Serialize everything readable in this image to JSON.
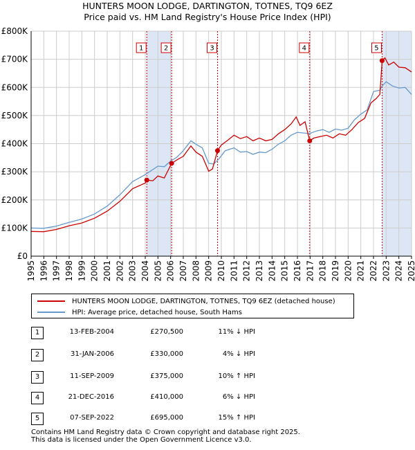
{
  "title": {
    "line1": "HUNTERS MOON LODGE, DARTINGTON, TOTNES, TQ9 6EZ",
    "line2": "Price paid vs. HM Land Registry's House Price Index (HPI)"
  },
  "colors": {
    "property": "#cc0000",
    "hpi": "#6699cc",
    "shade": "#dde6f5",
    "grid": "#cccccc"
  },
  "chart_data": {
    "type": "line",
    "title": "Price paid vs. HM Land Registry's House Price Index (HPI)",
    "xlabel": "",
    "ylabel": "",
    "xlim": [
      1995,
      2025
    ],
    "ylim": [
      0,
      800000
    ],
    "grid": true,
    "y_ticks": [
      {
        "value": 0,
        "label": "£0"
      },
      {
        "value": 100000,
        "label": "£100K"
      },
      {
        "value": 200000,
        "label": "£200K"
      },
      {
        "value": 300000,
        "label": "£300K"
      },
      {
        "value": 400000,
        "label": "£400K"
      },
      {
        "value": 500000,
        "label": "£500K"
      },
      {
        "value": 600000,
        "label": "£600K"
      },
      {
        "value": 700000,
        "label": "£700K"
      },
      {
        "value": 800000,
        "label": "£800K"
      }
    ],
    "x_ticks": [
      "1995",
      "1996",
      "1997",
      "1998",
      "1999",
      "2000",
      "2001",
      "2002",
      "2003",
      "2004",
      "2005",
      "2006",
      "2007",
      "2008",
      "2009",
      "2010",
      "2011",
      "2012",
      "2013",
      "2014",
      "2015",
      "2016",
      "2017",
      "2018",
      "2019",
      "2020",
      "2021",
      "2022",
      "2023",
      "2024",
      "2025"
    ],
    "shaded_ranges": [
      [
        2004.12,
        2006.08
      ],
      [
        2022.68,
        2025.0
      ]
    ],
    "series": [
      {
        "name": "HUNTERS MOON LODGE, DARTINGTON, TOTNES, TQ9 6EZ (detached house)",
        "color": "#cc0000",
        "points": [
          [
            1995.0,
            88000
          ],
          [
            1996.0,
            87000
          ],
          [
            1997.0,
            95000
          ],
          [
            1998.0,
            108000
          ],
          [
            1999.0,
            118000
          ],
          [
            2000.0,
            135000
          ],
          [
            2001.0,
            160000
          ],
          [
            2002.0,
            195000
          ],
          [
            2003.0,
            240000
          ],
          [
            2004.0,
            260000
          ],
          [
            2004.12,
            270500
          ],
          [
            2004.6,
            268000
          ],
          [
            2005.0,
            285000
          ],
          [
            2005.5,
            278000
          ],
          [
            2006.08,
            330000
          ],
          [
            2006.6,
            345000
          ],
          [
            2007.0,
            355000
          ],
          [
            2007.6,
            392000
          ],
          [
            2008.0,
            370000
          ],
          [
            2008.5,
            355000
          ],
          [
            2009.0,
            302000
          ],
          [
            2009.3,
            310000
          ],
          [
            2009.7,
            375000
          ],
          [
            2010.0,
            395000
          ],
          [
            2010.5,
            412000
          ],
          [
            2011.0,
            430000
          ],
          [
            2011.5,
            418000
          ],
          [
            2012.0,
            425000
          ],
          [
            2012.5,
            410000
          ],
          [
            2013.0,
            420000
          ],
          [
            2013.5,
            410000
          ],
          [
            2014.0,
            415000
          ],
          [
            2014.5,
            435000
          ],
          [
            2015.0,
            450000
          ],
          [
            2015.5,
            470000
          ],
          [
            2015.9,
            495000
          ],
          [
            2016.2,
            465000
          ],
          [
            2016.6,
            478000
          ],
          [
            2016.97,
            410000
          ],
          [
            2017.3,
            420000
          ],
          [
            2017.8,
            425000
          ],
          [
            2018.3,
            430000
          ],
          [
            2018.8,
            420000
          ],
          [
            2019.3,
            435000
          ],
          [
            2019.8,
            430000
          ],
          [
            2020.3,
            450000
          ],
          [
            2020.8,
            475000
          ],
          [
            2021.3,
            490000
          ],
          [
            2021.8,
            545000
          ],
          [
            2022.2,
            560000
          ],
          [
            2022.5,
            575000
          ],
          [
            2022.68,
            695000
          ],
          [
            2022.9,
            705000
          ],
          [
            2023.2,
            680000
          ],
          [
            2023.6,
            690000
          ],
          [
            2024.0,
            672000
          ],
          [
            2024.5,
            670000
          ],
          [
            2025.0,
            655000
          ]
        ]
      },
      {
        "name": "HPI: Average price, detached house, South Hams",
        "color": "#6699cc",
        "points": [
          [
            1995.0,
            100000
          ],
          [
            1996.0,
            99000
          ],
          [
            1997.0,
            107000
          ],
          [
            1998.0,
            120000
          ],
          [
            1999.0,
            132000
          ],
          [
            2000.0,
            150000
          ],
          [
            2001.0,
            178000
          ],
          [
            2002.0,
            218000
          ],
          [
            2003.0,
            265000
          ],
          [
            2004.0,
            290000
          ],
          [
            2004.5,
            305000
          ],
          [
            2005.0,
            320000
          ],
          [
            2005.5,
            318000
          ],
          [
            2006.0,
            338000
          ],
          [
            2006.5,
            352000
          ],
          [
            2007.0,
            375000
          ],
          [
            2007.6,
            410000
          ],
          [
            2008.0,
            398000
          ],
          [
            2008.5,
            385000
          ],
          [
            2009.0,
            330000
          ],
          [
            2009.4,
            328000
          ],
          [
            2009.8,
            345000
          ],
          [
            2010.3,
            375000
          ],
          [
            2011.0,
            385000
          ],
          [
            2011.5,
            370000
          ],
          [
            2012.0,
            372000
          ],
          [
            2012.5,
            362000
          ],
          [
            2013.0,
            370000
          ],
          [
            2013.5,
            368000
          ],
          [
            2014.0,
            380000
          ],
          [
            2014.5,
            398000
          ],
          [
            2015.0,
            410000
          ],
          [
            2015.5,
            430000
          ],
          [
            2016.0,
            440000
          ],
          [
            2016.5,
            438000
          ],
          [
            2016.97,
            436000
          ],
          [
            2017.5,
            445000
          ],
          [
            2018.0,
            450000
          ],
          [
            2018.5,
            440000
          ],
          [
            2019.0,
            452000
          ],
          [
            2019.5,
            448000
          ],
          [
            2020.0,
            455000
          ],
          [
            2020.5,
            485000
          ],
          [
            2021.0,
            505000
          ],
          [
            2021.5,
            520000
          ],
          [
            2022.0,
            585000
          ],
          [
            2022.5,
            590000
          ],
          [
            2022.68,
            605000
          ],
          [
            2023.0,
            620000
          ],
          [
            2023.5,
            605000
          ],
          [
            2024.0,
            598000
          ],
          [
            2024.5,
            600000
          ],
          [
            2025.0,
            575000
          ]
        ]
      }
    ],
    "sale_markers": [
      {
        "label": "1",
        "x": 2004.12,
        "price": 270500
      },
      {
        "label": "2",
        "x": 2006.08,
        "price": 330000
      },
      {
        "label": "3",
        "x": 2009.7,
        "price": 375000
      },
      {
        "label": "4",
        "x": 2016.97,
        "price": 410000
      },
      {
        "label": "5",
        "x": 2022.68,
        "price": 695000
      }
    ]
  },
  "legend": {
    "property_label": "HUNTERS MOON LODGE, DARTINGTON, TOTNES, TQ9 6EZ (detached house)",
    "hpi_label": "HPI: Average price, detached house, South Hams"
  },
  "sales": [
    {
      "num": "1",
      "date": "13-FEB-2004",
      "price": "£270,500",
      "hpi": "11% ↓ HPI"
    },
    {
      "num": "2",
      "date": "31-JAN-2006",
      "price": "£330,000",
      "hpi": "4% ↓ HPI"
    },
    {
      "num": "3",
      "date": "11-SEP-2009",
      "price": "£375,000",
      "hpi": "10% ↑ HPI"
    },
    {
      "num": "4",
      "date": "21-DEC-2016",
      "price": "£410,000",
      "hpi": "6% ↓ HPI"
    },
    {
      "num": "5",
      "date": "07-SEP-2022",
      "price": "£695,000",
      "hpi": "15% ↑ HPI"
    }
  ],
  "footer": {
    "line1": "Contains HM Land Registry data © Crown copyright and database right 2025.",
    "line2": "This data is licensed under the Open Government Licence v3.0."
  }
}
